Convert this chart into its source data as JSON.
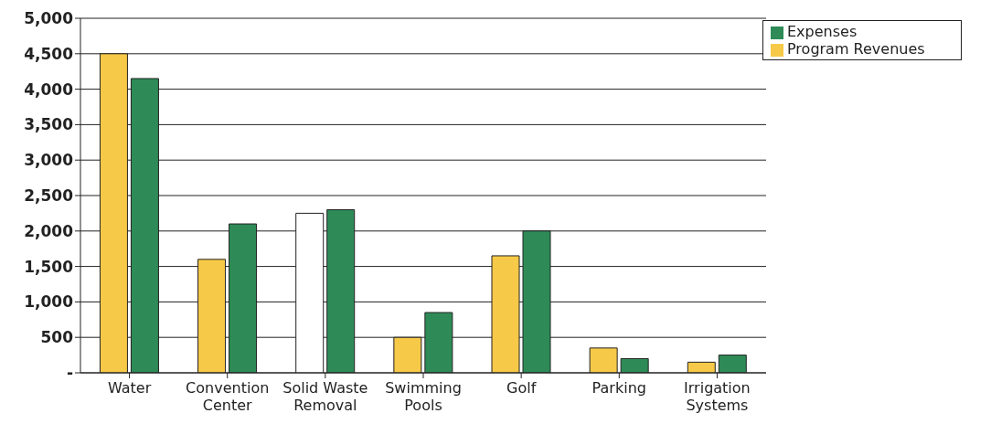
{
  "chart_data": {
    "type": "bar",
    "categories": [
      "Water",
      "Convention Center",
      "Solid Waste Removal",
      "Swimming Pools",
      "Golf",
      "Parking",
      "Irrigation Systems"
    ],
    "series": [
      {
        "name": "Program Revenues",
        "color": "#f7c948",
        "colors": [
          "#f7c948",
          "#f7c948",
          "#ffffff",
          "#f7c948",
          "#f7c948",
          "#f7c948",
          "#f7c948"
        ],
        "values": [
          4500,
          1600,
          2250,
          500,
          1650,
          350,
          150
        ]
      },
      {
        "name": "Expenses",
        "color": "#2e8b57",
        "values": [
          4150,
          2100,
          2300,
          850,
          2000,
          200,
          250
        ]
      }
    ],
    "ylim": [
      0,
      5000
    ],
    "yticks": [
      {
        "value": 0,
        "label": "-"
      },
      500,
      {
        "value": 1000,
        "label": "1,000"
      },
      {
        "value": 1500,
        "label": "1,500"
      },
      {
        "value": 2000,
        "label": "2,000"
      },
      {
        "value": 2500,
        "label": "2,500"
      },
      {
        "value": 3000,
        "label": "3,000"
      },
      {
        "value": 3500,
        "label": "3,500"
      },
      {
        "value": 4000,
        "label": "4,000"
      },
      {
        "value": 4500,
        "label": "4,500"
      },
      {
        "value": 5000,
        "label": "5,000"
      }
    ],
    "grid": "y",
    "legend": "top right"
  }
}
